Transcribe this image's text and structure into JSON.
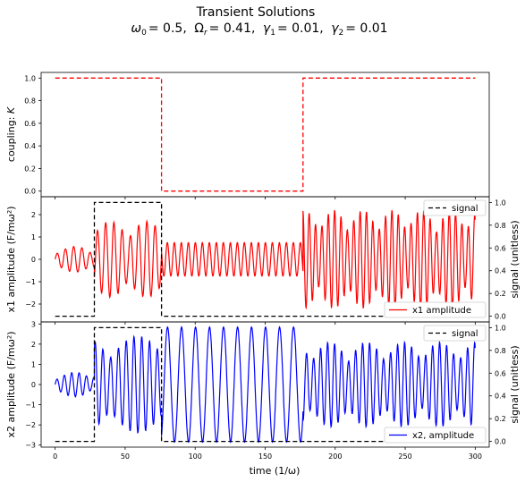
{
  "figure": {
    "title": "Transient Solutions",
    "subtitle_parts": {
      "omega0_sym": "ω",
      "omega0_sub": "0",
      "omega0_val": "= 0.5,",
      "Omega_sym": "Ω",
      "Omega_sub": "r",
      "Omega_val": "= 0.41,",
      "gamma1_sym": "γ",
      "gamma1_sub": "1",
      "gamma1_val": "= 0.01,",
      "gamma2_sym": "γ",
      "gamma2_sub": "2",
      "gamma2_val": "= 0.01"
    },
    "xlabel": "time (1/ω)",
    "colors": {
      "red": "#ff0000",
      "blue": "#0000ff",
      "black": "#000000"
    }
  },
  "chart_data": [
    {
      "type": "line",
      "ylabel_sym": "coupling: ",
      "ylabel_var": "K",
      "xlim": [
        -10,
        310
      ],
      "ylim": [
        -0.05,
        1.05
      ],
      "yticks": [
        "0.0",
        "0.2",
        "0.4",
        "0.6",
        "0.8",
        "1.0"
      ],
      "series": [
        {
          "style": "dashed",
          "color": "#ff0000",
          "x": [
            0,
            76,
            76,
            177,
            177,
            300
          ],
          "y": [
            1,
            1,
            0,
            0,
            1,
            1
          ]
        }
      ]
    },
    {
      "type": "line",
      "ylabel": "x1 amplitude (F/mω²)",
      "ylabel_right": "signal (unitless)",
      "xlim": [
        -10,
        310
      ],
      "ylim": [
        -2.8,
        2.8
      ],
      "yticks": [
        "−2",
        "−1",
        "0",
        "1",
        "2"
      ],
      "yticks_right": [
        "0.0",
        "0.2",
        "0.4",
        "0.6",
        "0.8",
        "1.0"
      ],
      "legend_top": "signal",
      "legend_bottom": "x1 amplitude",
      "signal": {
        "x": [
          0,
          28,
          28,
          76,
          76,
          300
        ],
        "y": [
          0,
          0,
          1,
          1,
          0,
          0
        ]
      },
      "oscillation": {
        "color": "#ff0000",
        "segments": [
          {
            "t0": 0,
            "t1": 28,
            "amp": 0.7,
            "freq": 0.17,
            "beat": 0.05
          },
          {
            "t0": 28,
            "t1": 76,
            "amp": 1.7,
            "freq": 0.17,
            "beat": 0.12
          },
          {
            "t0": 76,
            "t1": 177,
            "amp": 0.75,
            "freq": 0.2,
            "beat": 0.0
          },
          {
            "t0": 177,
            "t1": 300,
            "amp": 2.2,
            "freq": 0.22,
            "beat": 0.15
          }
        ]
      }
    },
    {
      "type": "line",
      "ylabel": "x2 amplitude (F/mω²)",
      "ylabel_right": "signal (unitless)",
      "xlim": [
        -10,
        310
      ],
      "ylim": [
        -3.1,
        3.1
      ],
      "yticks": [
        "−3",
        "−2",
        "−1",
        "0",
        "1",
        "2",
        "3"
      ],
      "yticks_right": [
        "0.0",
        "0.2",
        "0.4",
        "0.6",
        "0.8",
        "1.0"
      ],
      "xticks": [
        "0",
        "50",
        "100",
        "150",
        "200",
        "250",
        "300"
      ],
      "legend_top": "signal",
      "legend_bottom": "x2, amplitude",
      "signal": {
        "x": [
          0,
          28,
          28,
          76,
          76,
          300
        ],
        "y": [
          0,
          0,
          1,
          1,
          0,
          0
        ]
      },
      "oscillation": {
        "color": "#0000ff",
        "segments": [
          {
            "t0": 0,
            "t1": 28,
            "amp": 0.7,
            "freq": 0.19,
            "beat": 0.06
          },
          {
            "t0": 28,
            "t1": 76,
            "amp": 2.4,
            "freq": 0.18,
            "beat": 0.08
          },
          {
            "t0": 76,
            "t1": 177,
            "amp": 2.85,
            "freq": 0.1,
            "beat": 0.0
          },
          {
            "t0": 177,
            "t1": 300,
            "amp": 2.1,
            "freq": 0.2,
            "beat": 0.12
          }
        ]
      }
    }
  ]
}
